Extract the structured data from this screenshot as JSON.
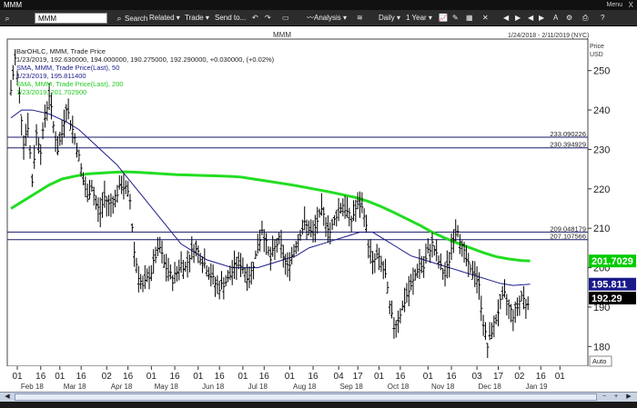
{
  "window": {
    "title": "MMM",
    "menu_label": "Menu",
    "close_label": "X"
  },
  "toolbar": {
    "symbol_value": "MMM",
    "search_label": "Search",
    "related_label": "Related",
    "trade_label": "Trade",
    "send_label": "Send to...",
    "analysis_label": "Analysis",
    "period_label": "Daily",
    "range_label": "1 Year"
  },
  "chart_header": {
    "symbol": "MMM",
    "date_range": "1/24/2018 - 2/11/2019 (NYC)",
    "price_label": "Price",
    "currency": "USD"
  },
  "legend": {
    "line1": "BarOHLC, MMM, Trade Price",
    "line2": "1/23/2019, 192.630000, 194.000000, 190.275000, 192.290000, +0.030000, (+0.02%)",
    "line3": "SMA, MMM, Trade Price(Last), 50",
    "line4": "1/23/2019, 195.811400",
    "line5": "SMA, MMM, Trade Price(Last), 200",
    "line6": "1/23/2019, 201.702900"
  },
  "auto_label": "Auto",
  "colors": {
    "price_bars": "#000000",
    "sma50": "#1a1a8a",
    "sma200": "#22dd22",
    "hlines": "#1a1a6a",
    "last_tag": "#000000",
    "sma200_tag": "#00cc00",
    "sma50_tag": "#1a1a8a"
  },
  "chart_data": {
    "type": "line",
    "title": "",
    "ylabel": "Price USD",
    "ylim": [
      175,
      258
    ],
    "yticks": [
      180,
      190,
      200,
      210,
      220,
      230,
      240,
      250
    ],
    "xlim": [
      0,
      260
    ],
    "x_tick_labels": [
      {
        "label": "01",
        "x": 3
      },
      {
        "label": "16",
        "x": 14
      },
      {
        "label": "01",
        "x": 23
      },
      {
        "label": "16",
        "x": 33
      },
      {
        "label": "02",
        "x": 45
      },
      {
        "label": "16",
        "x": 55
      },
      {
        "label": "01",
        "x": 66
      },
      {
        "label": "16",
        "x": 77
      },
      {
        "label": "01",
        "x": 88
      },
      {
        "label": "16",
        "x": 98
      },
      {
        "label": "01",
        "x": 109
      },
      {
        "label": "16",
        "x": 119
      },
      {
        "label": "01",
        "x": 131
      },
      {
        "label": "16",
        "x": 142
      },
      {
        "label": "04",
        "x": 154
      },
      {
        "label": "17",
        "x": 163
      },
      {
        "label": "01",
        "x": 173
      },
      {
        "label": "16",
        "x": 183
      },
      {
        "label": "01",
        "x": 196
      },
      {
        "label": "16",
        "x": 207
      },
      {
        "label": "03",
        "x": 219
      },
      {
        "label": "17",
        "x": 229
      },
      {
        "label": "02",
        "x": 239
      },
      {
        "label": "16",
        "x": 249
      },
      {
        "label": "01",
        "x": 258
      }
    ],
    "month_labels": [
      {
        "label": "Feb 18",
        "x": 10
      },
      {
        "label": "Mar 18",
        "x": 30
      },
      {
        "label": "Apr 18",
        "x": 52
      },
      {
        "label": "May 18",
        "x": 73
      },
      {
        "label": "Jun 18",
        "x": 95
      },
      {
        "label": "Jul 18",
        "x": 116
      },
      {
        "label": "Aug 18",
        "x": 138
      },
      {
        "label": "Sep 18",
        "x": 160
      },
      {
        "label": "Oct 18",
        "x": 182
      },
      {
        "label": "Nov 18",
        "x": 203
      },
      {
        "label": "Dec 18",
        "x": 225
      },
      {
        "label": "Jan 19",
        "x": 247
      }
    ],
    "horizontal_lines": [
      {
        "value": 233.090226,
        "label": "233.090226"
      },
      {
        "value": 230.394929,
        "label": "230.394929"
      },
      {
        "value": 209.048179,
        "label": "209.048179"
      },
      {
        "value": 207.107566,
        "label": "207.107566"
      }
    ],
    "price_points": [
      [
        0,
        245
      ],
      [
        2,
        253
      ],
      [
        4,
        244
      ],
      [
        6,
        232
      ],
      [
        8,
        236
      ],
      [
        10,
        222
      ],
      [
        12,
        234
      ],
      [
        14,
        230
      ],
      [
        16,
        238
      ],
      [
        18,
        244
      ],
      [
        20,
        236
      ],
      [
        22,
        230
      ],
      [
        24,
        234
      ],
      [
        26,
        241
      ],
      [
        28,
        237
      ],
      [
        30,
        233
      ],
      [
        32,
        228
      ],
      [
        34,
        222
      ],
      [
        36,
        218
      ],
      [
        38,
        221
      ],
      [
        40,
        216
      ],
      [
        42,
        214
      ],
      [
        44,
        218
      ],
      [
        46,
        216
      ],
      [
        48,
        217
      ],
      [
        50,
        219
      ],
      [
        52,
        221
      ],
      [
        54,
        220
      ],
      [
        56,
        217
      ],
      [
        58,
        204
      ],
      [
        60,
        198
      ],
      [
        62,
        195
      ],
      [
        64,
        197
      ],
      [
        66,
        199
      ],
      [
        68,
        203
      ],
      [
        70,
        205
      ],
      [
        72,
        201
      ],
      [
        74,
        199
      ],
      [
        76,
        197
      ],
      [
        78,
        199
      ],
      [
        80,
        201
      ],
      [
        82,
        200
      ],
      [
        84,
        203
      ],
      [
        86,
        205
      ],
      [
        88,
        204
      ],
      [
        90,
        202
      ],
      [
        92,
        200
      ],
      [
        94,
        198
      ],
      [
        96,
        196
      ],
      [
        98,
        195
      ],
      [
        100,
        196
      ],
      [
        102,
        197
      ],
      [
        104,
        199
      ],
      [
        106,
        201
      ],
      [
        108,
        201
      ],
      [
        110,
        199
      ],
      [
        112,
        197
      ],
      [
        114,
        201
      ],
      [
        116,
        205
      ],
      [
        118,
        210
      ],
      [
        120,
        206
      ],
      [
        122,
        202
      ],
      [
        124,
        205
      ],
      [
        126,
        207
      ],
      [
        128,
        203
      ],
      [
        130,
        200
      ],
      [
        132,
        203
      ],
      [
        134,
        206
      ],
      [
        136,
        209
      ],
      [
        138,
        211
      ],
      [
        140,
        210
      ],
      [
        142,
        208
      ],
      [
        144,
        212
      ],
      [
        146,
        214
      ],
      [
        148,
        212
      ],
      [
        150,
        209
      ],
      [
        152,
        212
      ],
      [
        154,
        215
      ],
      [
        156,
        216
      ],
      [
        158,
        214
      ],
      [
        160,
        212
      ],
      [
        162,
        215
      ],
      [
        164,
        216
      ],
      [
        166,
        214
      ],
      [
        168,
        206
      ],
      [
        170,
        201
      ],
      [
        172,
        203
      ],
      [
        174,
        201
      ],
      [
        176,
        198
      ],
      [
        178,
        190
      ],
      [
        180,
        185
      ],
      [
        182,
        187
      ],
      [
        184,
        190
      ],
      [
        186,
        193
      ],
      [
        188,
        195
      ],
      [
        190,
        198
      ],
      [
        192,
        201
      ],
      [
        194,
        200
      ],
      [
        196,
        204
      ],
      [
        198,
        206
      ],
      [
        200,
        203
      ],
      [
        202,
        200
      ],
      [
        204,
        198
      ],
      [
        206,
        202
      ],
      [
        208,
        208
      ],
      [
        210,
        210
      ],
      [
        212,
        205
      ],
      [
        214,
        202
      ],
      [
        216,
        199
      ],
      [
        218,
        199
      ],
      [
        220,
        195
      ],
      [
        222,
        186
      ],
      [
        224,
        180
      ],
      [
        226,
        184
      ],
      [
        228,
        187
      ],
      [
        230,
        191
      ],
      [
        232,
        193
      ],
      [
        234,
        190
      ],
      [
        236,
        188
      ],
      [
        238,
        190
      ],
      [
        240,
        193
      ],
      [
        242,
        191
      ],
      [
        244,
        192.29
      ]
    ],
    "sma50_points": [
      [
        0,
        238
      ],
      [
        5,
        240
      ],
      [
        10,
        240
      ],
      [
        18,
        239
      ],
      [
        26,
        237
      ],
      [
        32,
        235
      ],
      [
        38,
        232
      ],
      [
        44,
        229
      ],
      [
        50,
        226
      ],
      [
        56,
        222
      ],
      [
        62,
        218
      ],
      [
        68,
        214
      ],
      [
        74,
        210
      ],
      [
        80,
        206
      ],
      [
        86,
        204
      ],
      [
        92,
        202
      ],
      [
        98,
        201
      ],
      [
        104,
        200
      ],
      [
        110,
        200
      ],
      [
        116,
        200
      ],
      [
        122,
        201
      ],
      [
        128,
        202
      ],
      [
        134,
        203
      ],
      [
        140,
        205
      ],
      [
        146,
        206
      ],
      [
        152,
        207
      ],
      [
        158,
        208
      ],
      [
        164,
        209
      ],
      [
        170,
        209
      ],
      [
        176,
        207
      ],
      [
        182,
        205
      ],
      [
        188,
        203
      ],
      [
        194,
        202
      ],
      [
        200,
        201
      ],
      [
        206,
        200
      ],
      [
        212,
        199
      ],
      [
        218,
        198
      ],
      [
        224,
        197
      ],
      [
        230,
        196
      ],
      [
        236,
        195.5
      ],
      [
        244,
        195.8114
      ]
    ],
    "sma200_points": [
      [
        0,
        215
      ],
      [
        6,
        217
      ],
      [
        12,
        219
      ],
      [
        18,
        221
      ],
      [
        24,
        222.5
      ],
      [
        30,
        223.2
      ],
      [
        36,
        223.8
      ],
      [
        42,
        224
      ],
      [
        48,
        224.2
      ],
      [
        54,
        224.3
      ],
      [
        60,
        224.2
      ],
      [
        66,
        224
      ],
      [
        72,
        223.8
      ],
      [
        78,
        223.6
      ],
      [
        84,
        223.5
      ],
      [
        90,
        223.4
      ],
      [
        96,
        223.3
      ],
      [
        102,
        223.2
      ],
      [
        108,
        223
      ],
      [
        114,
        222.5
      ],
      [
        120,
        222
      ],
      [
        126,
        221.5
      ],
      [
        132,
        221
      ],
      [
        138,
        220.4
      ],
      [
        144,
        219.8
      ],
      [
        150,
        219.2
      ],
      [
        156,
        218.5
      ],
      [
        162,
        217.8
      ],
      [
        168,
        216.8
      ],
      [
        174,
        215.5
      ],
      [
        180,
        214
      ],
      [
        186,
        212.4
      ],
      [
        192,
        210.8
      ],
      [
        198,
        209
      ],
      [
        204,
        207.5
      ],
      [
        210,
        206.2
      ],
      [
        216,
        205
      ],
      [
        222,
        203.8
      ],
      [
        228,
        202.8
      ],
      [
        234,
        202.2
      ],
      [
        240,
        201.8
      ],
      [
        244,
        201.7029
      ]
    ],
    "last_values": {
      "price": "192.29",
      "sma200": "201.7029",
      "sma50": "195.811"
    }
  }
}
